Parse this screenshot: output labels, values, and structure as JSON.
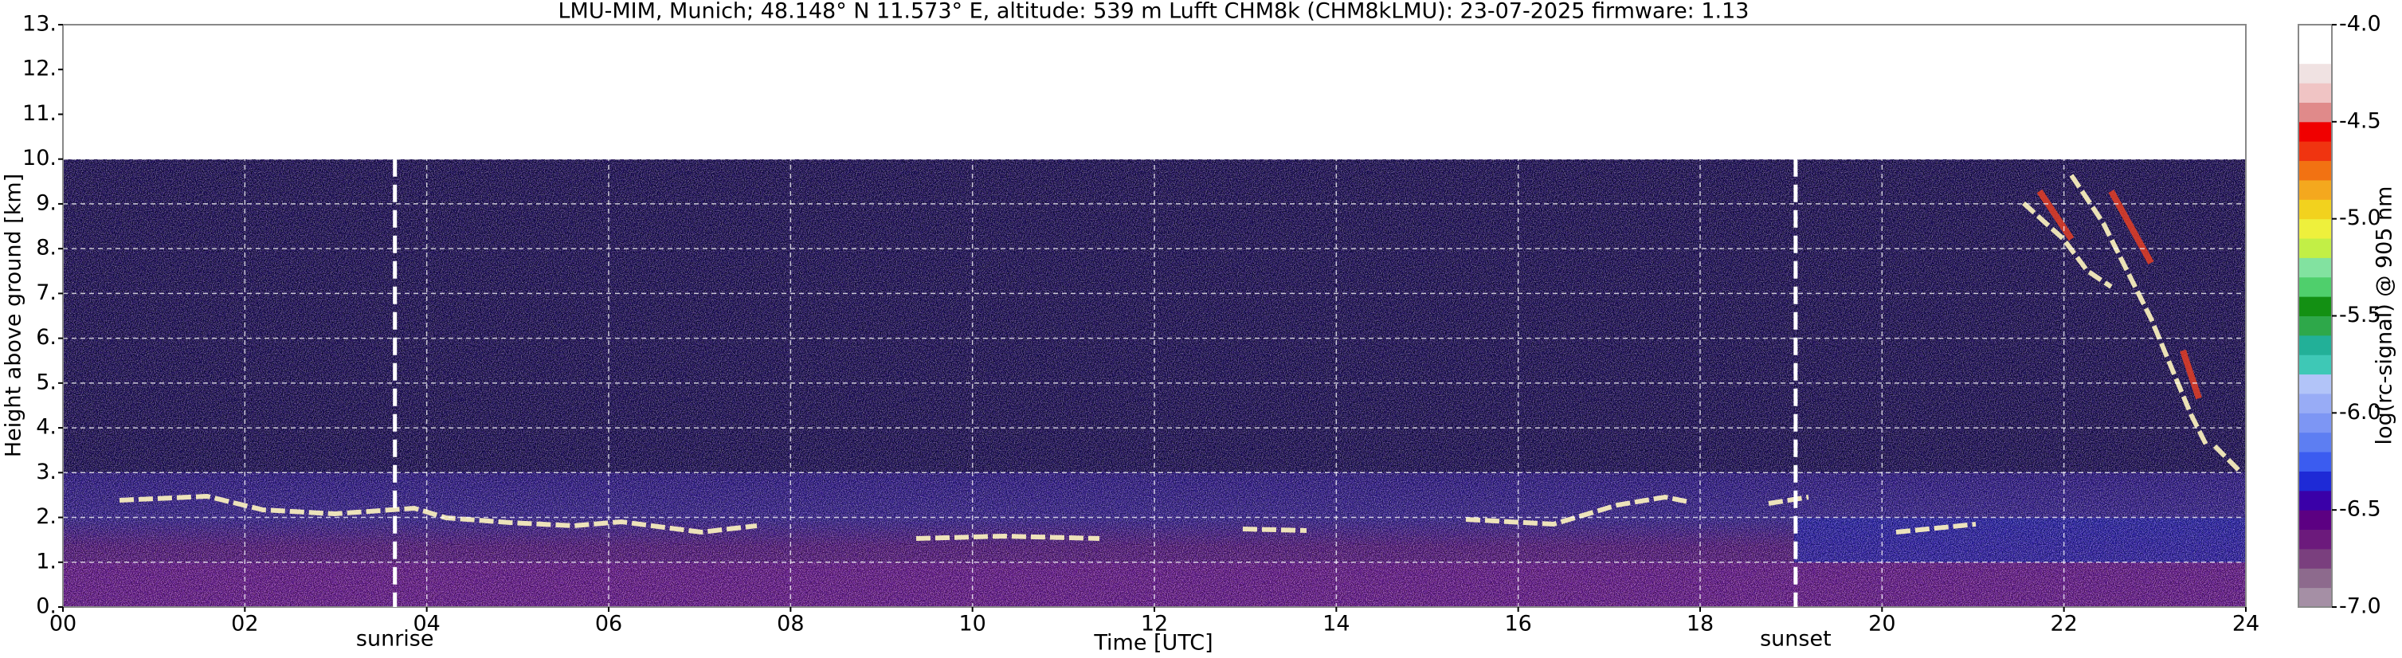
{
  "chart_data": {
    "type": "heatmap",
    "title": "LMU-MIM, Munich; 48.148° N 11.573° E, altitude: 539 m    Lufft CHM8k (CHM8kLMU): 23-07-2025    firmware: 1.13",
    "x_label": "Time [UTC]",
    "y_label": "Height above ground [km]",
    "colorbar_label": "log(rc-signal) @ 905 nm",
    "xlim": [
      0,
      24
    ],
    "xticks": [
      {
        "value": 0,
        "label": "00"
      },
      {
        "value": 2,
        "label": "02"
      },
      {
        "value": 4,
        "label": "04"
      },
      {
        "value": 6,
        "label": "06"
      },
      {
        "value": 8,
        "label": "08"
      },
      {
        "value": 10,
        "label": "10"
      },
      {
        "value": 12,
        "label": "12"
      },
      {
        "value": 14,
        "label": "14"
      },
      {
        "value": 16,
        "label": "16"
      },
      {
        "value": 18,
        "label": "18"
      },
      {
        "value": 20,
        "label": "20"
      },
      {
        "value": 22,
        "label": "22"
      },
      {
        "value": 24,
        "label": "24"
      }
    ],
    "ylim": [
      0,
      13
    ],
    "yticks": [
      {
        "value": 0,
        "label": "0."
      },
      {
        "value": 1,
        "label": "1."
      },
      {
        "value": 2,
        "label": "2."
      },
      {
        "value": 3,
        "label": "3."
      },
      {
        "value": 4,
        "label": "4."
      },
      {
        "value": 5,
        "label": "5."
      },
      {
        "value": 6,
        "label": "6."
      },
      {
        "value": 7,
        "label": "7."
      },
      {
        "value": 8,
        "label": "8."
      },
      {
        "value": 9,
        "label": "9."
      },
      {
        "value": 10,
        "label": "10."
      },
      {
        "value": 11,
        "label": "11."
      },
      {
        "value": 12,
        "label": "12."
      },
      {
        "value": 13,
        "label": "13."
      }
    ],
    "clim": [
      -7,
      -4
    ],
    "cticks": [
      {
        "value": -4,
        "label": "-4.0"
      },
      {
        "value": -4.5,
        "label": "-4.5"
      },
      {
        "value": -5,
        "label": "-5.0"
      },
      {
        "value": -5.5,
        "label": "-5.5"
      },
      {
        "value": -6,
        "label": "-6.0"
      },
      {
        "value": -6.5,
        "label": "-6.5"
      },
      {
        "value": -7,
        "label": "-7.0"
      }
    ],
    "colormap": [
      "#a58fa5",
      "#8d6a8d",
      "#7a3f7e",
      "#6c1a7c",
      "#5c0082",
      "#3a00a8",
      "#1e2ad6",
      "#3b5cf0",
      "#5d7ef2",
      "#7d96f4",
      "#98acf6",
      "#b2c4f8",
      "#3ec8b6",
      "#22b098",
      "#2ea84a",
      "#139013",
      "#4fcf6c",
      "#82e2a0",
      "#c2ef46",
      "#eef03c",
      "#f2d21e",
      "#f4a81e",
      "#f27212",
      "#f03410",
      "#f00000",
      "#e08a8a",
      "#f0c4c4",
      "#f0e2e2",
      "#ffffff",
      "#ffffff"
    ],
    "grid": true,
    "annotations": [
      {
        "label": "sunrise",
        "x": 3.65
      },
      {
        "label": "sunset",
        "x": 19.05
      }
    ]
  }
}
